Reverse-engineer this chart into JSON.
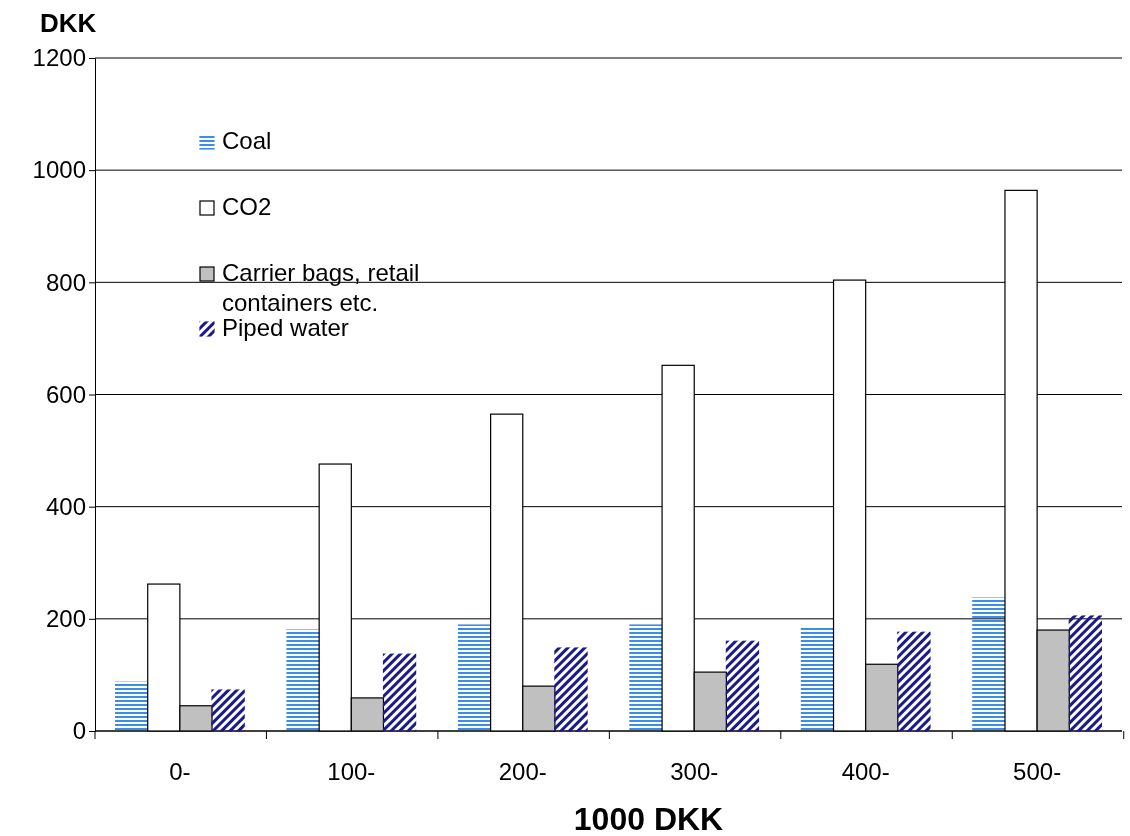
{
  "chart_data": {
    "type": "bar",
    "ylabel": "DKK",
    "xlabel": "1000 DKK",
    "categories": [
      "0-",
      "100-",
      "200-",
      "300-",
      "400-",
      "500-"
    ],
    "series": [
      {
        "name": "Coal",
        "color": "#3a8ee6",
        "values": [
          87,
          180,
          189,
          189,
          185,
          237
        ]
      },
      {
        "name": "CO2",
        "color": "#ffffff",
        "values": [
          262,
          476,
          565,
          652,
          804,
          964
        ]
      },
      {
        "name": "Carrier bags, retail containers etc.",
        "color": "#c0c0c0",
        "values": [
          45,
          59,
          80,
          105,
          119,
          180
        ]
      },
      {
        "name": "Piped water",
        "color": "#1a1a8c",
        "values": [
          73,
          137,
          148,
          160,
          176,
          205
        ]
      }
    ],
    "ylim": [
      0,
      1200
    ],
    "yticks": [
      0,
      200,
      400,
      600,
      800,
      1000,
      1200
    ],
    "grid": "y",
    "legend": "top left"
  }
}
